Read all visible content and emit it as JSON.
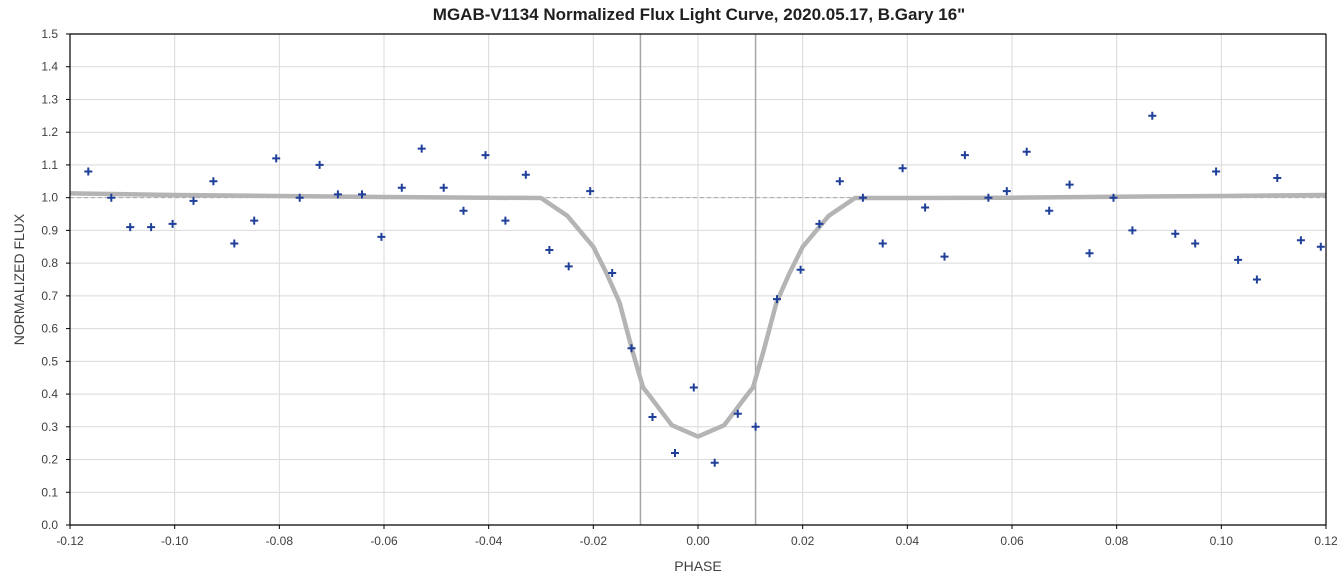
{
  "chart_data": {
    "type": "scatter",
    "title": "MGAB-V1134 Normalized Flux Light Curve, 2020.05.17, B.Gary 16\"",
    "xlabel": "PHASE",
    "ylabel": "NORMALIZED FLUX",
    "xlim": [
      -0.12,
      0.12
    ],
    "ylim": [
      0.0,
      1.5
    ],
    "xticks": [
      "-0.12",
      "-0.10",
      "-0.08",
      "-0.06",
      "-0.04",
      "-0.02",
      "0.00",
      "0.02",
      "0.04",
      "0.06",
      "0.08",
      "0.10",
      "0.12"
    ],
    "yticks": [
      "0.0",
      "0.1",
      "0.2",
      "0.3",
      "0.4",
      "0.5",
      "0.6",
      "0.7",
      "0.8",
      "0.9",
      "1.0",
      "1.1",
      "1.2",
      "1.3",
      "1.4",
      "1.5"
    ],
    "grid": true,
    "legend": "none",
    "reference_line_y": 1.0,
    "vertical_markers_x": [
      -0.011,
      0.011
    ],
    "series": [
      {
        "type": "scatter",
        "marker": "plus",
        "color": "#1f3f99",
        "x": [
          -0.1165,
          -0.1121,
          -0.1085,
          -0.1045,
          -0.1004,
          -0.0964,
          -0.0926,
          -0.0886,
          -0.0848,
          -0.0806,
          -0.0761,
          -0.0723,
          -0.0688,
          -0.0642,
          -0.0605,
          -0.0566,
          -0.0528,
          -0.0486,
          -0.0448,
          -0.0406,
          -0.0368,
          -0.0329,
          -0.0284,
          -0.0247,
          -0.0206,
          -0.0164,
          -0.0127,
          -0.0087,
          -0.0044,
          -0.0008,
          0.0032,
          0.0076,
          0.011,
          0.0151,
          0.0196,
          0.0232,
          0.0271,
          0.0315,
          0.0353,
          0.0391,
          0.0434,
          0.0471,
          0.051,
          0.0555,
          0.059,
          0.0628,
          0.0671,
          0.071,
          0.0748,
          0.0794,
          0.083,
          0.0868,
          0.0912,
          0.095,
          0.099,
          0.1032,
          0.1068,
          0.1107,
          0.1152,
          0.119
        ],
        "y": [
          1.08,
          1.0,
          0.91,
          0.91,
          0.92,
          0.99,
          1.05,
          0.86,
          0.93,
          1.12,
          1.0,
          1.1,
          1.01,
          1.01,
          0.88,
          1.03,
          1.15,
          1.03,
          0.96,
          1.13,
          0.93,
          1.07,
          0.84,
          0.79,
          1.02,
          0.77,
          0.54,
          0.33,
          0.22,
          0.42,
          0.19,
          0.34,
          0.3,
          0.69,
          0.78,
          0.92,
          1.05,
          1.0,
          0.86,
          1.09,
          0.97,
          0.82,
          1.13,
          1.0,
          1.02,
          1.14,
          0.96,
          1.04,
          0.83,
          1.0,
          0.9,
          1.25,
          0.89,
          0.86,
          1.08,
          0.81,
          0.75,
          1.06,
          0.87,
          0.85
        ]
      },
      {
        "type": "line",
        "color": "#b4b4b4",
        "x": [
          -0.12,
          -0.1,
          -0.08,
          -0.06,
          -0.04,
          -0.03,
          -0.025,
          -0.02,
          -0.0175,
          -0.015,
          -0.0125,
          -0.0105,
          -0.0095,
          -0.005,
          0.0,
          0.005,
          0.0095,
          0.0105,
          0.0125,
          0.015,
          0.0175,
          0.02,
          0.025,
          0.03,
          0.04,
          0.06,
          0.08,
          0.1,
          0.12
        ],
        "y": [
          1.013,
          1.008,
          1.005,
          1.002,
          1.0,
          0.999,
          0.945,
          0.85,
          0.77,
          0.68,
          0.53,
          0.42,
          0.4,
          0.305,
          0.27,
          0.305,
          0.4,
          0.42,
          0.53,
          0.68,
          0.77,
          0.85,
          0.945,
          0.999,
          0.999,
          1.0,
          1.003,
          1.005,
          1.008
        ]
      }
    ]
  }
}
